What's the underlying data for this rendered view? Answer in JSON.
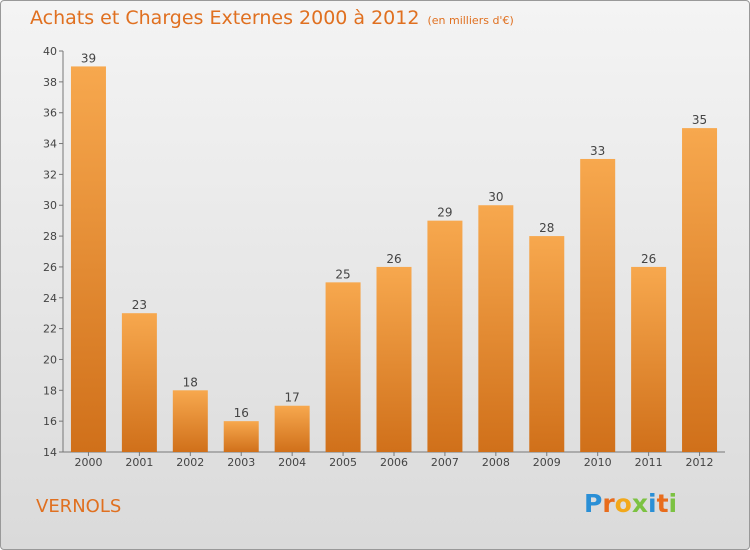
{
  "title": "Achats et Charges Externes 2000 à 2012",
  "subtitle": "(en milliers d'€)",
  "location": "VERNOLS",
  "brand": {
    "letters": [
      "P",
      "r",
      "o",
      "x",
      "i",
      "t",
      "i"
    ],
    "colors": [
      "#2a8fd6",
      "#e86c1c",
      "#f2a81a",
      "#7cc242",
      "#2a8fd6",
      "#e86c1c",
      "#7cc242"
    ]
  },
  "colors": {
    "bar_light": "#f7a84e",
    "bar_dark": "#d0701a",
    "title": "#e07020"
  },
  "chart_data": {
    "type": "bar",
    "categories": [
      "2000",
      "2001",
      "2002",
      "2003",
      "2004",
      "2005",
      "2006",
      "2007",
      "2008",
      "2009",
      "2010",
      "2011",
      "2012"
    ],
    "values": [
      39,
      23,
      18,
      16,
      17,
      25,
      26,
      29,
      30,
      28,
      33,
      26,
      35
    ],
    "ylim": [
      14,
      40
    ],
    "yticks": [
      14,
      16,
      18,
      20,
      22,
      24,
      26,
      28,
      30,
      32,
      34,
      36,
      38,
      40
    ],
    "grid": false
  }
}
